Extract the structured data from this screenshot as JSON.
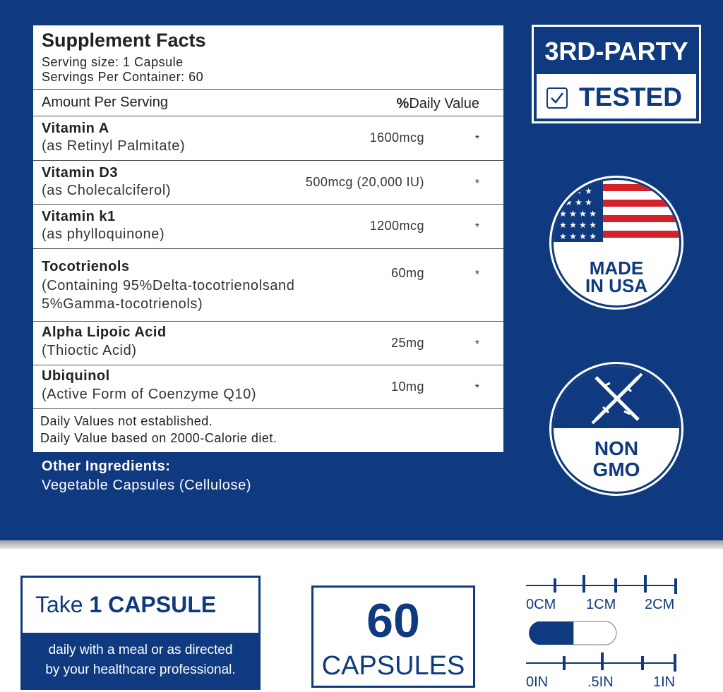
{
  "colors": {
    "brand_blue": "#0f3a7f",
    "flag_red": "#d42027"
  },
  "facts": {
    "title": "Supplement Facts",
    "serving_size": "Serving size: 1 Capsule",
    "servings": "Servings Per Container: 60",
    "amount_header": "Amount Per Serving",
    "dv_header_bold": "%",
    "dv_header": "Daily Value",
    "rows": [
      {
        "name": "Vitamin A",
        "sub": "(as Retinyl Palmitate)",
        "amount": "1600mcg",
        "dv": "*"
      },
      {
        "name": "Vitamin D3",
        "sub": "(as Cholecalciferol)",
        "amount": "500mcg (20,000 IU)",
        "dv": "*"
      },
      {
        "name": "Vitamin k1",
        "sub": "(as phylloquinone)",
        "amount": "1200mcg",
        "dv": "*"
      },
      {
        "name": "Tocotrienols",
        "sub": "(Containing 95%Delta-tocotrienolsand",
        "sub2": "5%Gamma-tocotrienols)",
        "amount": "60mg",
        "dv": "*"
      },
      {
        "name": "Alpha Lipoic Acid",
        "sub": "(Thioctic Acid)",
        "amount": "25mg",
        "dv": "*"
      },
      {
        "name": "Ubiquinol",
        "sub": "(Active Form of Coenzyme Q10)",
        "amount": "10mg",
        "dv": "*"
      }
    ],
    "footer1": "Daily Values not established.",
    "footer2": "Daily Value based on 2000-Calorie diet."
  },
  "other": {
    "title": "Other Ingredients:",
    "value": "Vegetable Capsules (Cellulose)"
  },
  "badges": {
    "tested_top": "3RD-PARTY",
    "tested_bottom": "TESTED",
    "usa1": "MADE",
    "usa2": "IN USA",
    "gmo1": "NON",
    "gmo2": "GMO"
  },
  "dosage": {
    "take": "Take ",
    "count": "1 CAPSULE",
    "desc1": "daily with a meal or as directed",
    "desc2": "by your healthcare professional."
  },
  "quantity": {
    "number": "60",
    "unit": "CAPSULES"
  },
  "ruler": {
    "cm": [
      "0CM",
      "1CM",
      "2CM"
    ],
    "in": [
      "0IN",
      ".5IN",
      "1IN"
    ]
  }
}
